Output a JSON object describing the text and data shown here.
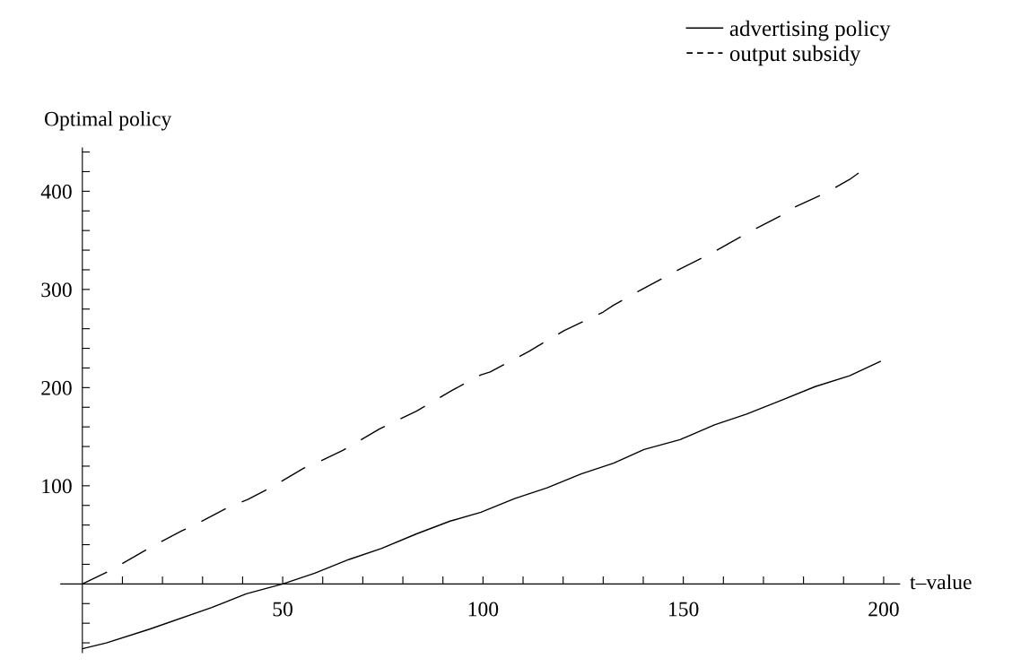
{
  "chart_data": {
    "type": "line",
    "xlabel": "t–value",
    "ylabel": "Optimal policy",
    "xlim": [
      -5.4,
      204
    ],
    "ylim": [
      -70,
      444
    ],
    "xticks": [
      {
        "value": 10,
        "label": null
      },
      {
        "value": 20,
        "label": null
      },
      {
        "value": 30,
        "label": null
      },
      {
        "value": 40,
        "label": null
      },
      50,
      {
        "value": 60,
        "label": null
      },
      {
        "value": 70,
        "label": null
      },
      {
        "value": 80,
        "label": null
      },
      {
        "value": 90,
        "label": null
      },
      100,
      {
        "value": 110,
        "label": null
      },
      {
        "value": 120,
        "label": null
      },
      {
        "value": 130,
        "label": null
      },
      {
        "value": 140,
        "label": null
      },
      150,
      {
        "value": 160,
        "label": null
      },
      {
        "value": 170,
        "label": null
      },
      {
        "value": 180,
        "label": null
      },
      {
        "value": 190,
        "label": null
      },
      200
    ],
    "yticks": [
      {
        "value": -60,
        "label": null
      },
      {
        "value": -40,
        "label": null
      },
      {
        "value": -20,
        "label": null
      },
      {
        "value": 20,
        "label": null
      },
      {
        "value": 40,
        "label": null
      },
      {
        "value": 60,
        "label": null
      },
      {
        "value": 80,
        "label": null
      },
      100,
      {
        "value": 120,
        "label": null
      },
      {
        "value": 140,
        "label": null
      },
      {
        "value": 160,
        "label": null
      },
      {
        "value": 180,
        "label": null
      },
      200,
      {
        "value": 220,
        "label": null
      },
      {
        "value": 240,
        "label": null
      },
      {
        "value": 260,
        "label": null
      },
      {
        "value": 280,
        "label": null
      },
      300,
      {
        "value": 320,
        "label": null
      },
      {
        "value": 340,
        "label": null
      },
      {
        "value": 360,
        "label": null
      },
      {
        "value": 380,
        "label": null
      },
      400,
      {
        "value": 420,
        "label": null
      },
      {
        "value": 440,
        "label": null
      }
    ],
    "grid": false,
    "legend": "top right",
    "marker": "none",
    "series": [
      {
        "name": "advertising policy",
        "color": "#000000",
        "line_style": "solid",
        "x": [
          0,
          6,
          16.8,
          32.3,
          40.9,
          50,
          58,
          66.6,
          74.6,
          83.4,
          91.8,
          99.5,
          107.9,
          116,
          124.5,
          132.6,
          140.2,
          149.2,
          157.8,
          165.8,
          174.4,
          182.9,
          191.5,
          199.3
        ],
        "values": [
          -66,
          -60,
          -46,
          -24,
          -10,
          0,
          11,
          25,
          36,
          51,
          64,
          73,
          87,
          98,
          112,
          123,
          137,
          147,
          162,
          173,
          187,
          201,
          212,
          227
        ]
      },
      {
        "name": "output subsidy",
        "color": "#000000",
        "line_style": "dashed",
        "x": [
          0,
          7.6,
          8.8,
          18.2,
          24.8,
          27,
          36.9,
          41.3,
          46.5,
          55.3,
          57.8,
          65,
          74.2,
          83.4,
          92.2,
          99.5,
          101.8,
          111.5,
          120.2,
          130,
          132.6,
          138.7,
          148.8,
          157.1,
          166.7,
          174.8,
          175.7,
          185.4,
          191.5,
          194.2
        ],
        "values": [
          0,
          15,
          18,
          40,
          54,
          58,
          79,
          86,
          97,
          118,
          122,
          136,
          158,
          176,
          197,
          213,
          216,
          237,
          258,
          277,
          284,
          298,
          320,
          337,
          359,
          376,
          380,
          398,
          412,
          420
        ]
      }
    ]
  }
}
